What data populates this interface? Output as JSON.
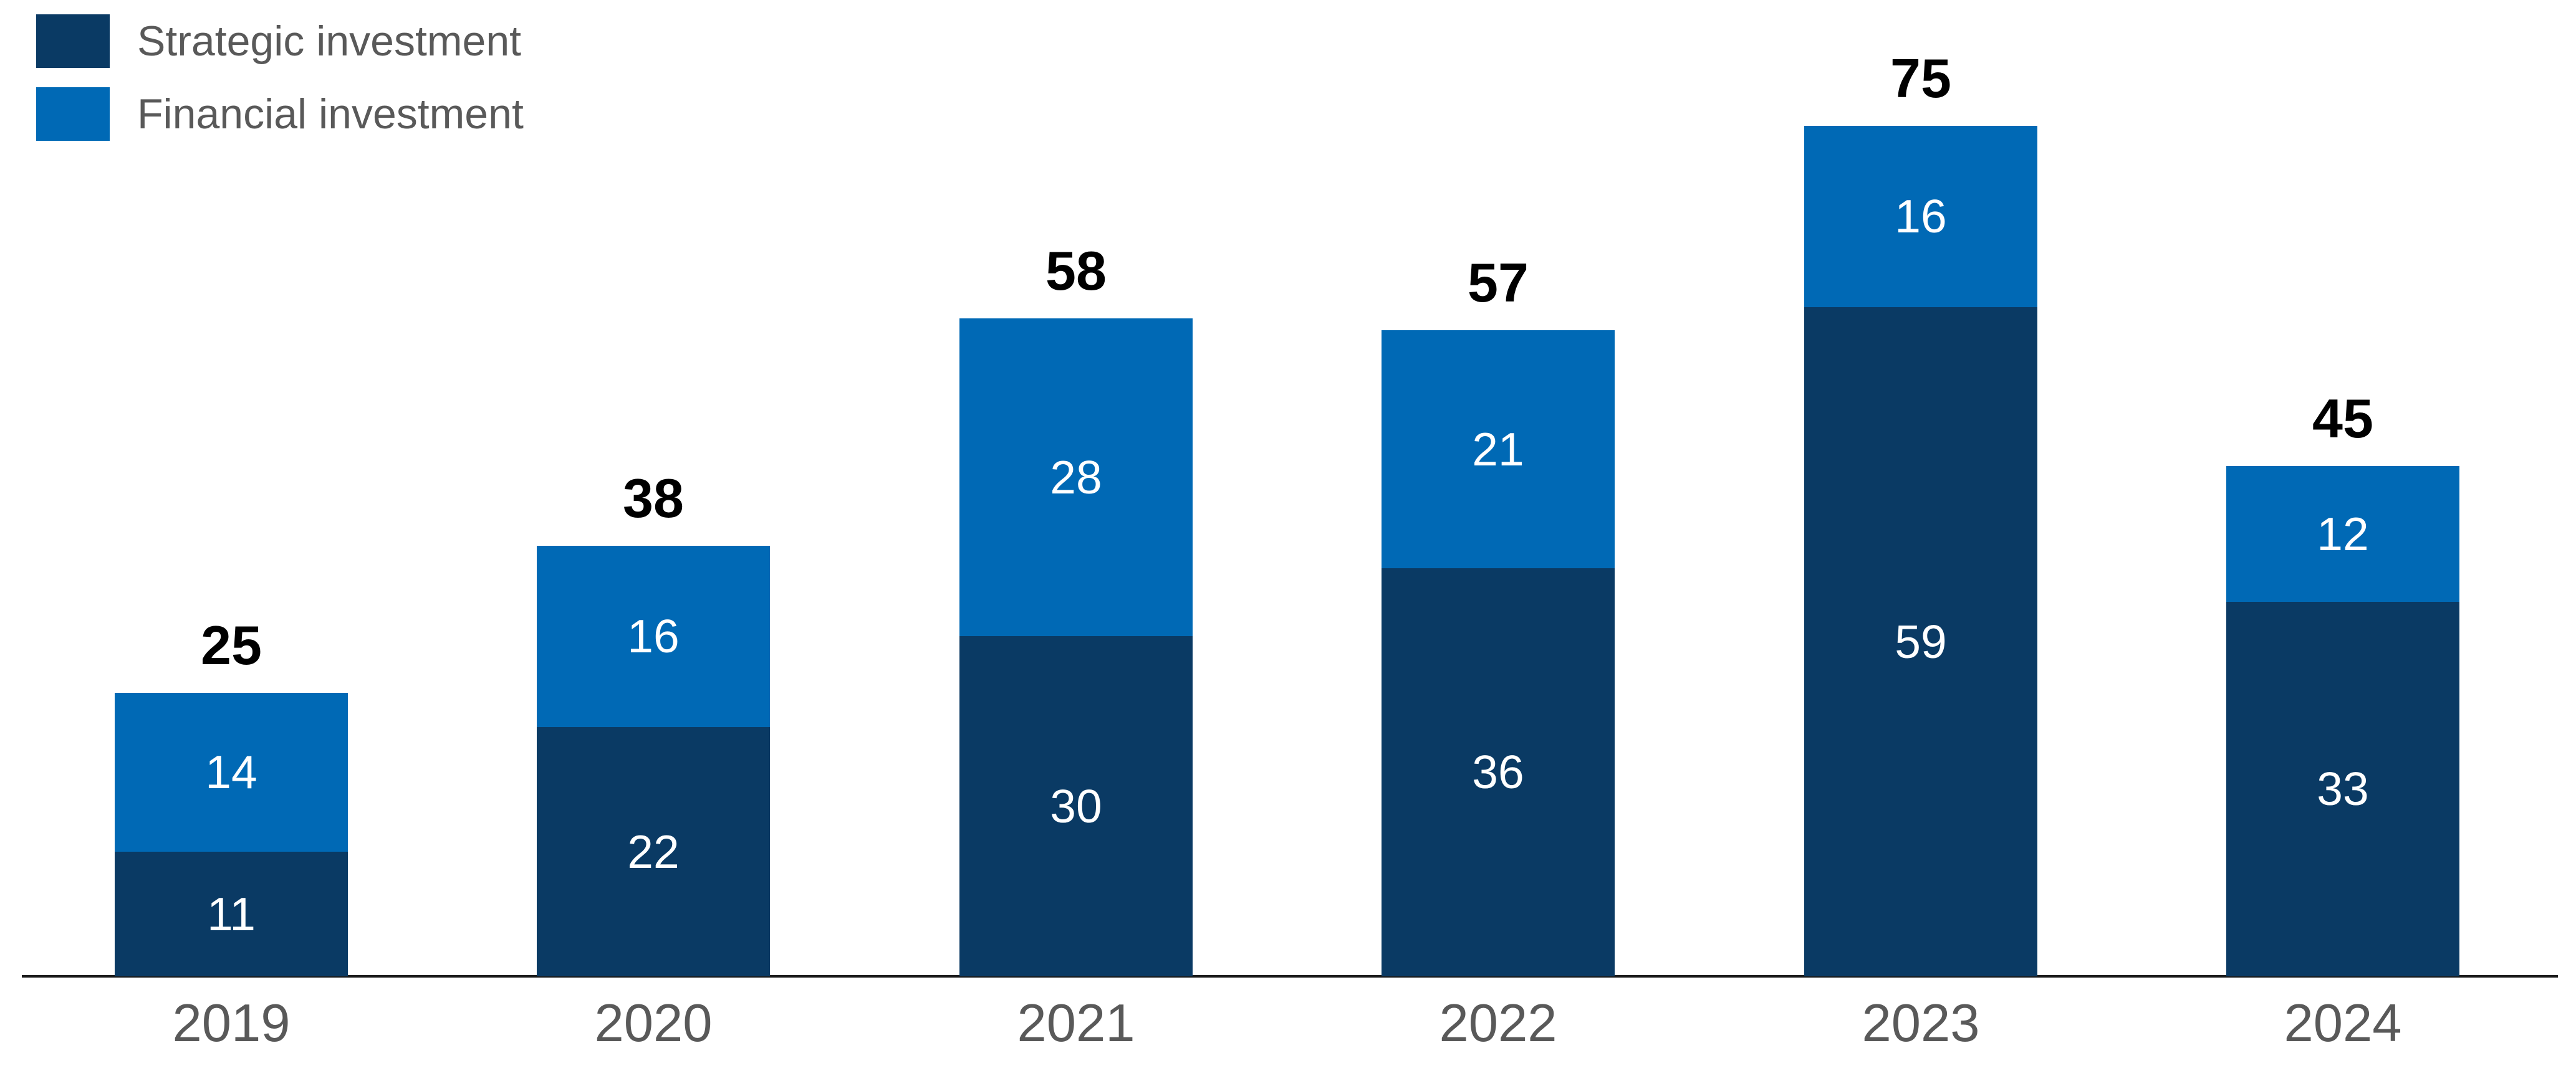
{
  "legend": {
    "items": [
      {
        "label": "Strategic investment",
        "color": "#0a3a64"
      },
      {
        "label": "Financial investment",
        "color": "#0069b5"
      }
    ]
  },
  "chart_data": {
    "type": "bar",
    "stacked": true,
    "title": "",
    "xlabel": "",
    "ylabel": "",
    "categories": [
      "2019",
      "2020",
      "2021",
      "2022",
      "2023",
      "2024"
    ],
    "series": [
      {
        "name": "Strategic investment",
        "color": "#0a3a64",
        "values": [
          11,
          22,
          30,
          36,
          59,
          33
        ]
      },
      {
        "name": "Financial investment",
        "color": "#0069b5",
        "values": [
          14,
          16,
          28,
          21,
          16,
          12
        ]
      }
    ],
    "totals": [
      25,
      38,
      58,
      57,
      75,
      45
    ],
    "ylim": [
      0,
      80
    ],
    "grid": false,
    "legend_position": "top-left",
    "value_labels": "inside-segments",
    "total_labels": "above-bars",
    "axis_line_color": "#1a1a1a",
    "axis_label_color": "#595959",
    "total_label_color": "#000000",
    "segment_label_color": "#ffffff"
  }
}
